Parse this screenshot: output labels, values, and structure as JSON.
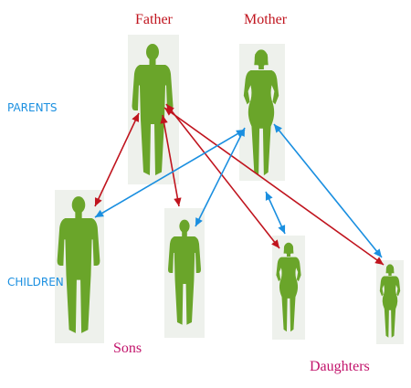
{
  "labels": {
    "father": "Father",
    "mother": "Mother",
    "parents": "PARENTS",
    "children": "CHILDREN",
    "sons": "Sons",
    "daughters": "Daughters"
  },
  "figures": {
    "father": "man-silhouette-icon",
    "mother": "woman-silhouette-icon",
    "son_1": "man-silhouette-icon",
    "son_2": "man-silhouette-icon",
    "daughter_1": "woman-silhouette-icon",
    "daughter_2": "woman-silhouette-icon"
  },
  "relations": [
    {
      "from": "father",
      "to": "son_1",
      "color": "#c0141e"
    },
    {
      "from": "father",
      "to": "son_2",
      "color": "#c0141e"
    },
    {
      "from": "father",
      "to": "daughter_1",
      "color": "#c0141e"
    },
    {
      "from": "father",
      "to": "daughter_2",
      "color": "#c0141e"
    },
    {
      "from": "mother",
      "to": "son_1",
      "color": "#1a8fe0"
    },
    {
      "from": "mother",
      "to": "son_2",
      "color": "#1a8fe0"
    },
    {
      "from": "mother",
      "to": "daughter_1",
      "color": "#1a8fe0"
    },
    {
      "from": "mother",
      "to": "daughter_2",
      "color": "#1a8fe0"
    }
  ],
  "colors": {
    "figure": "#6aa52a",
    "parent_label": "#c0141e",
    "section_label": "#1a8fe0",
    "child_label": "#c2136b",
    "father_arrow": "#c0141e",
    "mother_arrow": "#1a8fe0"
  }
}
